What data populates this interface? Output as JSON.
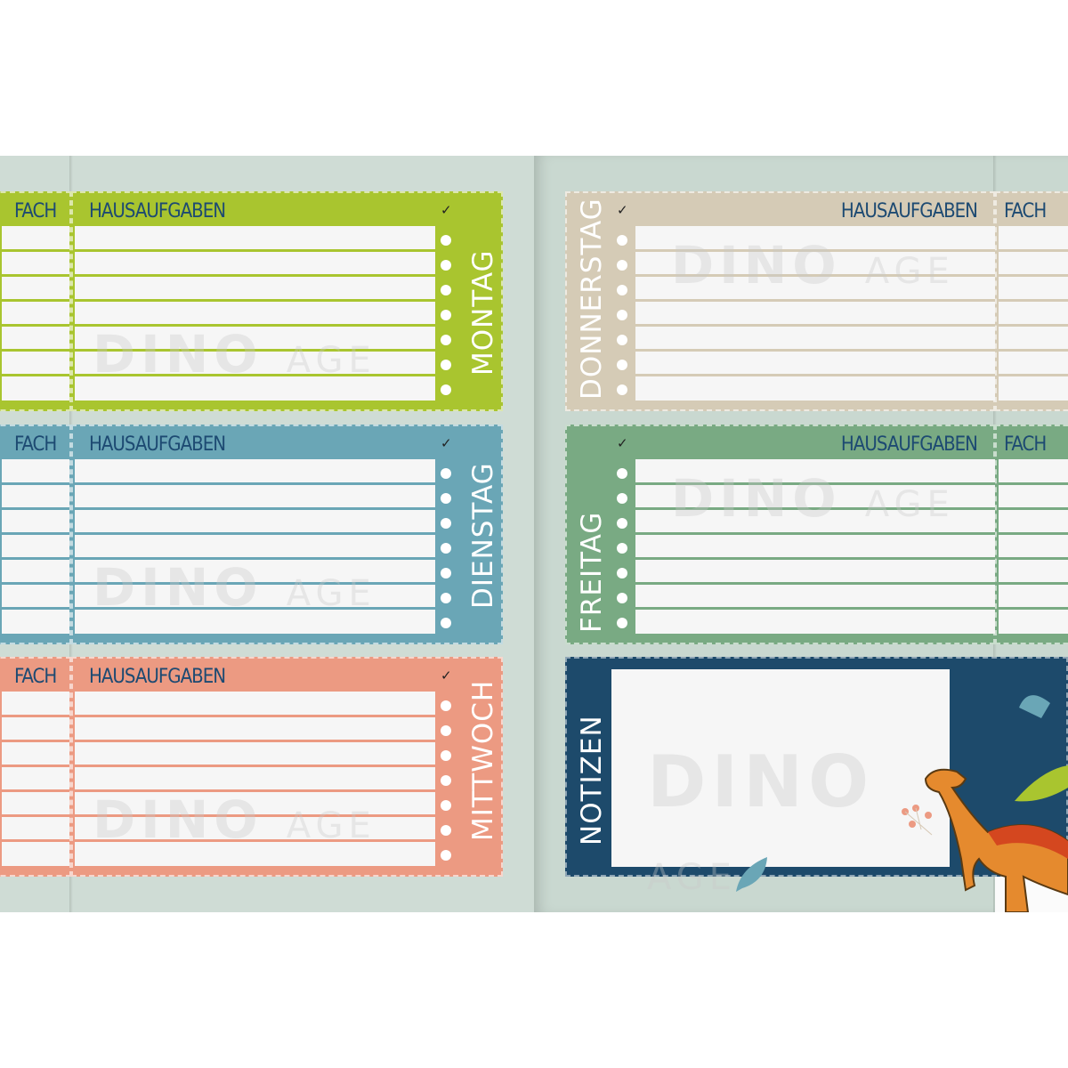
{
  "labels": {
    "subject": "FACH",
    "homework": "HAUSAUFGABEN",
    "check": "✓",
    "notes": "NOTIZEN"
  },
  "logo": {
    "word": "DINO",
    "sub": "AGE"
  },
  "days": [
    {
      "name": "MONTAG",
      "color": "#a9c52f",
      "side": "left"
    },
    {
      "name": "DIENSTAG",
      "color": "#6aa6b6",
      "side": "left"
    },
    {
      "name": "MITTWOCH",
      "color": "#ec9a82",
      "side": "left"
    },
    {
      "name": "DONNERSTAG",
      "color": "#d5cbb6",
      "side": "right"
    },
    {
      "name": "FREITAG",
      "color": "#79aa83",
      "side": "right"
    }
  ],
  "colors": {
    "notes": "#1d4a6b",
    "text": "#1d4a72",
    "page": "#cfdcd5"
  }
}
